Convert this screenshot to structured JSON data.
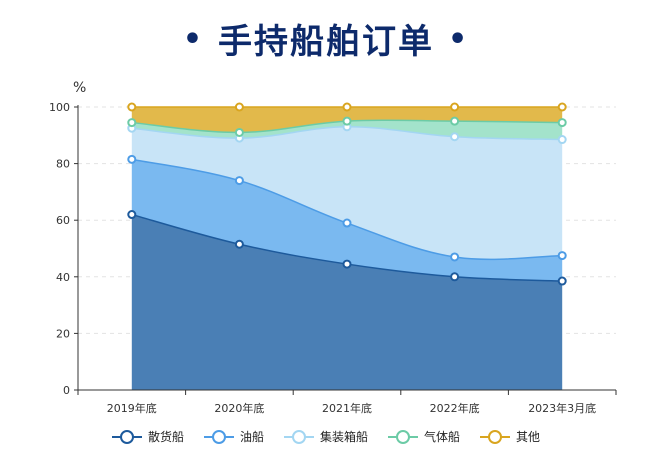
{
  "page": {
    "title_dot": "•",
    "title": "手持船舶订单",
    "unit": "%"
  },
  "chart_data": {
    "type": "area",
    "stacked": true,
    "title": "手持船舶订单",
    "ylabel": "%",
    "ylim": [
      0,
      100
    ],
    "yticks": [
      0,
      20,
      40,
      60,
      80,
      100
    ],
    "categories": [
      "2019年底",
      "2020年底",
      "2021年底",
      "2022年底",
      "2023年3月底"
    ],
    "grid": "horizontal-dashed",
    "legend_position": "bottom",
    "series": [
      {
        "name": "散货船",
        "color": "#1d5a9c",
        "fill": "#4a7fb5",
        "values": [
          62,
          51.5,
          44.5,
          40,
          38.5
        ]
      },
      {
        "name": "油船",
        "color": "#4d9ce6",
        "fill": "#7ab9f0",
        "values": [
          19.5,
          22.5,
          14.5,
          7,
          9
        ]
      },
      {
        "name": "集装箱船",
        "color": "#a3d6f2",
        "fill": "#c8e4f7",
        "values": [
          11,
          15,
          34,
          42.5,
          41
        ]
      },
      {
        "name": "气体船",
        "color": "#6ccba6",
        "fill": "#a3e3cb",
        "values": [
          2,
          2,
          2,
          5.5,
          6
        ]
      },
      {
        "name": "其他",
        "color": "#d9a51f",
        "fill": "#e2b94b",
        "values": [
          5.5,
          9,
          5,
          5,
          5.5
        ]
      }
    ]
  }
}
